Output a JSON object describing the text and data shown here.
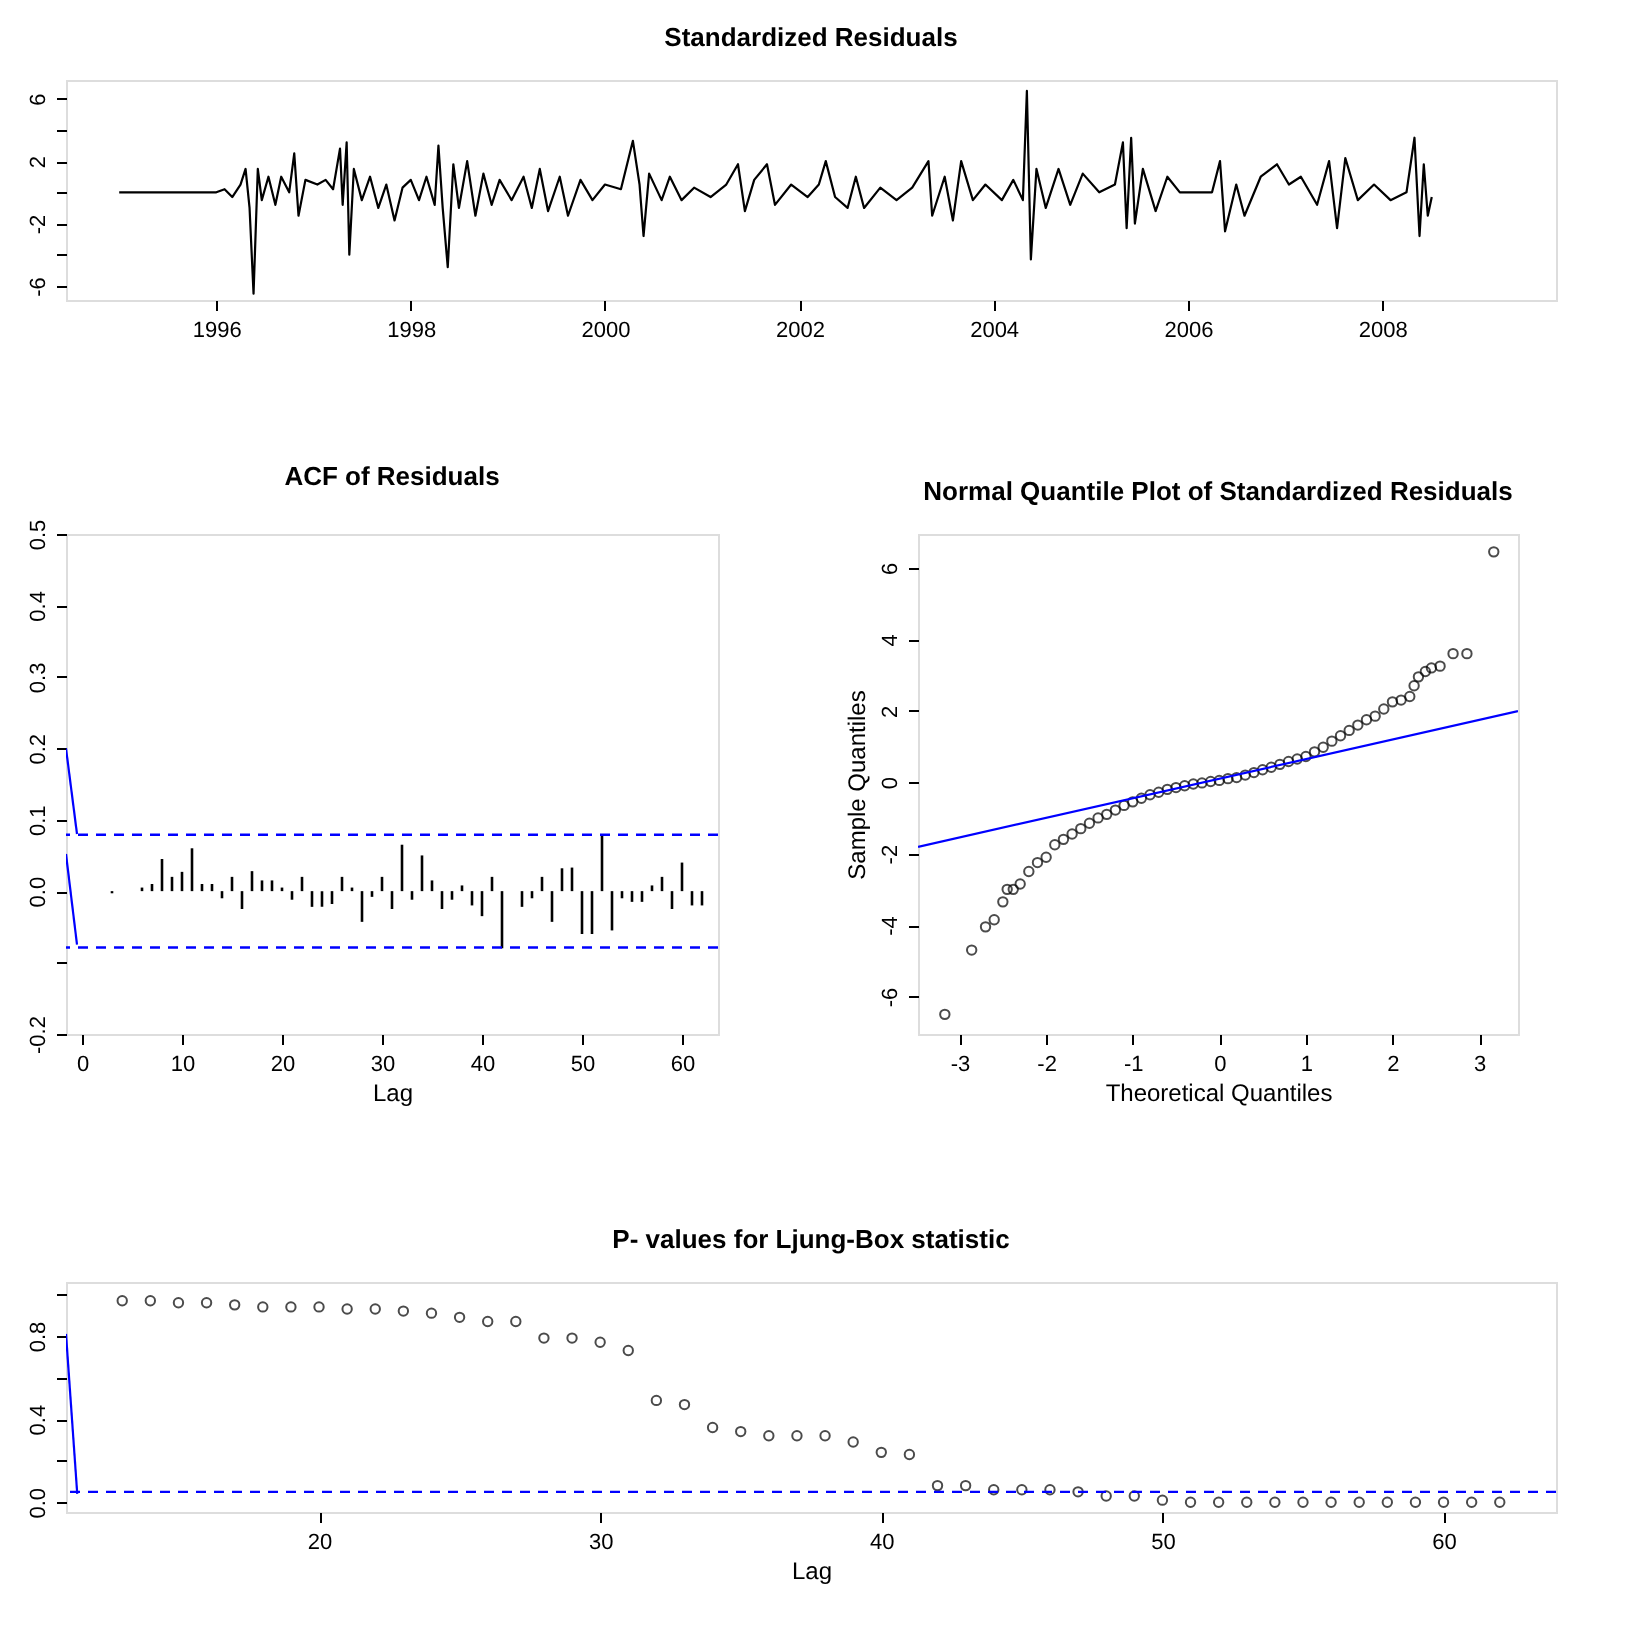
{
  "chart_data": [
    {
      "type": "line",
      "title": "Standardized Residuals",
      "marker": "none",
      "line_style": "solid",
      "x": [
        "1995-01-01",
        "1996-01-01",
        "1996-02-01",
        "1996-03-01",
        "1996-04-01",
        "1996-04-20",
        "1996-05-05",
        "1996-05-20",
        "1996-06-05",
        "1996-06-20",
        "1996-07-15",
        "1996-08-10",
        "1996-09-01",
        "1996-10-01",
        "1996-10-20",
        "1996-11-05",
        "1996-12-01",
        "1997-01-15",
        "1997-02-15",
        "1997-03-15",
        "1997-04-10",
        "1997-04-20",
        "1997-05-05",
        "1997-05-15",
        "1997-06-01",
        "1997-07-01",
        "1997-08-01",
        "1997-09-01",
        "1997-10-01",
        "1997-11-01",
        "1997-12-01",
        "1998-01-01",
        "1998-02-01",
        "1998-03-01",
        "1998-04-01",
        "1998-04-15",
        "1998-05-01",
        "1998-05-20",
        "1998-06-10",
        "1998-07-01",
        "1998-08-01",
        "1998-09-01",
        "1998-10-01",
        "1998-11-01",
        "1998-12-01",
        "1999-01-15",
        "1999-03-01",
        "1999-04-01",
        "1999-05-01",
        "1999-06-01",
        "1999-07-15",
        "1999-08-15",
        "1999-10-01",
        "1999-11-15",
        "2000-01-01",
        "2000-03-01",
        "2000-04-15",
        "2000-05-10",
        "2000-05-25",
        "2000-06-15",
        "2000-08-01",
        "2000-09-01",
        "2000-10-15",
        "2000-12-01",
        "2001-02-01",
        "2001-04-01",
        "2001-05-15",
        "2001-06-10",
        "2001-07-15",
        "2001-09-01",
        "2001-10-01",
        "2001-12-01",
        "2002-02-01",
        "2002-03-15",
        "2002-04-10",
        "2002-05-15",
        "2002-07-01",
        "2002-08-01",
        "2002-09-01",
        "2002-11-01",
        "2003-01-01",
        "2003-03-01",
        "2003-05-01",
        "2003-05-15",
        "2003-07-01",
        "2003-08-01",
        "2003-09-01",
        "2003-10-15",
        "2003-12-01",
        "2004-02-01",
        "2004-03-15",
        "2004-04-20",
        "2004-05-05",
        "2004-05-20",
        "2004-06-10",
        "2004-07-15",
        "2004-09-01",
        "2004-10-15",
        "2004-12-01",
        "2005-02-01",
        "2005-04-01",
        "2005-05-01",
        "2005-05-15",
        "2005-06-01",
        "2005-06-15",
        "2005-07-15",
        "2005-09-01",
        "2005-10-15",
        "2005-12-01",
        "2006-02-01",
        "2006-04-01",
        "2006-05-01",
        "2006-05-20",
        "2006-07-01",
        "2006-08-01",
        "2006-10-01",
        "2006-12-01",
        "2007-01-15",
        "2007-03-01",
        "2007-05-01",
        "2007-06-15",
        "2007-07-15",
        "2007-08-15",
        "2007-10-01",
        "2007-12-01",
        "2008-02-01",
        "2008-04-01",
        "2008-05-01",
        "2008-05-20",
        "2008-06-05",
        "2008-06-20",
        "2008-07-05"
      ],
      "series": [
        {
          "color": "#000000",
          "values": [
            0,
            0,
            0.2,
            -0.3,
            0.5,
            1.5,
            -1,
            -6.5,
            1.5,
            -0.5,
            1,
            -0.8,
            1,
            0,
            2.5,
            -1.5,
            0.8,
            0.5,
            0.8,
            0.2,
            2.8,
            -0.8,
            3.2,
            -4,
            1.5,
            -0.5,
            1,
            -1,
            0.5,
            -1.8,
            0.3,
            0.8,
            -0.5,
            1,
            -0.8,
            3,
            -1,
            -4.8,
            1.8,
            -1,
            2,
            -1.5,
            1.2,
            -0.8,
            0.8,
            -0.5,
            1,
            -1,
            1.5,
            -1.2,
            1,
            -1.5,
            0.8,
            -0.5,
            0.5,
            0.2,
            3.3,
            0.5,
            -2.8,
            1.2,
            -0.5,
            1,
            -0.5,
            0.3,
            -0.3,
            0.5,
            1.8,
            -1.2,
            0.8,
            1.8,
            -0.8,
            0.5,
            -0.3,
            0.5,
            2,
            -0.3,
            -1,
            1,
            -1,
            0.3,
            -0.5,
            0.3,
            2,
            -1.5,
            1,
            -1.8,
            2,
            -0.5,
            0.5,
            -0.5,
            0.8,
            -0.5,
            6.5,
            -4.3,
            1.5,
            -1,
            1.5,
            -0.8,
            1.2,
            0,
            0.5,
            3.2,
            -2.3,
            3.5,
            -2,
            1.5,
            -1.2,
            1,
            0,
            0,
            0,
            2,
            -2.5,
            0.5,
            -1.5,
            1,
            1.8,
            0.5,
            1,
            -0.8,
            2,
            -2.3,
            2.2,
            -0.5,
            0.5,
            -0.5,
            0,
            3.5,
            -2.8,
            1.8,
            -1.5,
            -0.3
          ]
        }
      ],
      "xlim": [
        "1994-06-15",
        "2009-10-15"
      ],
      "xticks": [
        "1996",
        "1998",
        "2000",
        "2002",
        "2004",
        "2006",
        "2008"
      ],
      "ylim": [
        -6.9,
        7.2
      ],
      "yticks": [
        -6,
        {
          "value": -4,
          "label": null
        },
        -2,
        {
          "value": 0,
          "label": null
        },
        2,
        {
          "value": 4,
          "label": null
        },
        6
      ]
    },
    {
      "type": "bar",
      "title": "ACF of Residuals",
      "xlabel": "Lag",
      "x": [
        1,
        2,
        3,
        4,
        5,
        6,
        7,
        8,
        9,
        10,
        11,
        12,
        13,
        14,
        15,
        16,
        17,
        18,
        19,
        20,
        21,
        22,
        23,
        24,
        25,
        26,
        27,
        28,
        29,
        30,
        31,
        32,
        33,
        34,
        35,
        36,
        37,
        38,
        39,
        40,
        41,
        42,
        43,
        44,
        45,
        46,
        47,
        48,
        49,
        50,
        51,
        52,
        53,
        54,
        55,
        56,
        57,
        58,
        59,
        60,
        61,
        62
      ],
      "series": [
        {
          "color": "#000000",
          "values": [
            0,
            0,
            -0.003,
            0,
            0,
            0.005,
            0.01,
            0.045,
            0.02,
            0.027,
            0.06,
            0.01,
            0.01,
            -0.01,
            0.02,
            -0.025,
            0.028,
            0.015,
            0.015,
            0.005,
            -0.012,
            0.02,
            -0.022,
            -0.022,
            -0.018,
            0.02,
            0.005,
            -0.043,
            -0.008,
            0.02,
            -0.025,
            0.065,
            -0.012,
            0.05,
            0.015,
            -0.025,
            -0.012,
            0.008,
            -0.02,
            -0.035,
            0.02,
            -0.08,
            0,
            -0.022,
            -0.01,
            0.02,
            -0.043,
            0.032,
            0.033,
            -0.06,
            -0.06,
            0.08,
            -0.055,
            -0.01,
            -0.015,
            -0.015,
            0.008,
            0.02,
            -0.025,
            0.04,
            -0.02,
            -0.02
          ]
        },
        {
          "type": "line",
          "color": "#0000ff",
          "marker": "none",
          "x": [
            -1.6,
            -0.5
          ],
          "values": [
            0.2,
            0.08
          ]
        },
        {
          "type": "line",
          "color": "#0000ff",
          "marker": "none",
          "x": [
            -1.6,
            -0.5
          ],
          "values": [
            0.052,
            -0.075
          ]
        }
      ],
      "ref_lines": [
        {
          "axis": "y",
          "value": 0.079,
          "color": "#0000ff",
          "line_style": "dashed"
        },
        {
          "axis": "y",
          "value": -0.079,
          "color": "#0000ff",
          "line_style": "dashed"
        }
      ],
      "xlim": [
        -1.6,
        63.6
      ],
      "xticks": [
        0,
        10,
        20,
        30,
        40,
        50,
        60
      ],
      "ylim": [
        -0.2,
        0.5
      ],
      "yticks": [
        -0.2,
        {
          "value": -0.1,
          "label": null
        },
        {
          "value": 0,
          "label": "0.0"
        },
        0.1,
        0.2,
        0.3,
        0.4,
        0.5
      ]
    },
    {
      "type": "scatter",
      "title": "Normal Quantile Plot of Standardized Residuals",
      "xlabel": "Theoretical Quantiles",
      "ylabel": "Sample Quantiles",
      "marker": "circle",
      "series": [
        {
          "color": "#000000",
          "x": [
            -3.17,
            -2.86,
            -2.7,
            -2.6,
            -2.5,
            -2.45,
            -2.38,
            -2.3,
            -2.2,
            -2.1,
            -2.0,
            -1.9,
            -1.8,
            -1.7,
            -1.6,
            -1.5,
            -1.4,
            -1.3,
            -1.2,
            -1.1,
            -1.0,
            -0.9,
            -0.8,
            -0.7,
            -0.6,
            -0.5,
            -0.4,
            -0.3,
            -0.2,
            -0.1,
            0,
            0.1,
            0.2,
            0.3,
            0.4,
            0.5,
            0.6,
            0.7,
            0.8,
            0.9,
            1.0,
            1.1,
            1.2,
            1.3,
            1.4,
            1.5,
            1.6,
            1.7,
            1.8,
            1.9,
            2.0,
            2.1,
            2.2,
            2.25,
            2.3,
            2.38,
            2.45,
            2.55,
            2.7,
            2.86,
            3.17
          ],
          "values": [
            -6.5,
            -4.7,
            -4.05,
            -3.85,
            -3.35,
            -3.0,
            -3.0,
            -2.85,
            -2.5,
            -2.25,
            -2.1,
            -1.75,
            -1.6,
            -1.45,
            -1.3,
            -1.15,
            -1.0,
            -0.9,
            -0.78,
            -0.65,
            -0.55,
            -0.45,
            -0.35,
            -0.28,
            -0.2,
            -0.15,
            -0.1,
            -0.05,
            -0.02,
            0.02,
            0.05,
            0.1,
            0.13,
            0.2,
            0.27,
            0.35,
            0.42,
            0.5,
            0.58,
            0.65,
            0.72,
            0.85,
            0.98,
            1.15,
            1.3,
            1.45,
            1.6,
            1.75,
            1.85,
            2.05,
            2.25,
            2.3,
            2.4,
            2.7,
            2.95,
            3.1,
            3.2,
            3.25,
            3.6,
            3.6,
            6.45
          ]
        },
        {
          "type": "line",
          "color": "#0000ff",
          "marker": "none",
          "x": [
            -3.48,
            3.45
          ],
          "values": [
            -1.81,
            1.99
          ]
        }
      ],
      "xlim": [
        -3.48,
        3.45
      ],
      "xticks": [
        -3,
        -2,
        -1,
        0,
        1,
        2,
        3
      ],
      "ylim": [
        -7.05,
        6.95
      ],
      "yticks": [
        -6,
        -4,
        -2,
        0,
        2,
        4,
        6
      ]
    },
    {
      "type": "scatter",
      "title": "P- values for Ljung-Box statistic",
      "xlabel": "Lag",
      "marker": "circle",
      "x": [
        13,
        14,
        15,
        16,
        17,
        18,
        19,
        20,
        21,
        22,
        23,
        24,
        25,
        26,
        27,
        28,
        29,
        30,
        31,
        32,
        33,
        34,
        35,
        36,
        37,
        38,
        39,
        40,
        41,
        42,
        43,
        44,
        45,
        46,
        47,
        48,
        49,
        50,
        51,
        52,
        53,
        54,
        55,
        56,
        57,
        58,
        59,
        60,
        61,
        62
      ],
      "series": [
        {
          "color": "#000000",
          "values": [
            0.97,
            0.97,
            0.96,
            0.96,
            0.95,
            0.94,
            0.94,
            0.94,
            0.93,
            0.93,
            0.92,
            0.91,
            0.89,
            0.87,
            0.87,
            0.79,
            0.79,
            0.77,
            0.73,
            0.49,
            0.47,
            0.36,
            0.34,
            0.32,
            0.32,
            0.32,
            0.29,
            0.24,
            0.23,
            0.08,
            0.08,
            0.06,
            0.06,
            0.06,
            0.05,
            0.03,
            0.03,
            0.01,
            0,
            0,
            0,
            0,
            0,
            0,
            0,
            0,
            0,
            0,
            0,
            0
          ]
        },
        {
          "type": "line",
          "color": "#0000ff",
          "marker": "none",
          "x": [
            11,
            11.4
          ],
          "values": [
            0.81,
            0.04
          ]
        }
      ],
      "ref_lines": [
        {
          "axis": "y",
          "value": 0.05,
          "color": "#0000ff",
          "line_style": "dashed"
        }
      ],
      "xlim": [
        11,
        64
      ],
      "xticks": [
        20,
        30,
        40,
        50,
        60
      ],
      "ylim": [
        -0.047,
        1.06
      ],
      "yticks": [
        {
          "value": 0,
          "label": "0.0"
        },
        {
          "value": 0.2,
          "label": null
        },
        0.4,
        {
          "value": 0.6,
          "label": null
        },
        0.8,
        {
          "value": 1,
          "label": null
        }
      ]
    }
  ]
}
